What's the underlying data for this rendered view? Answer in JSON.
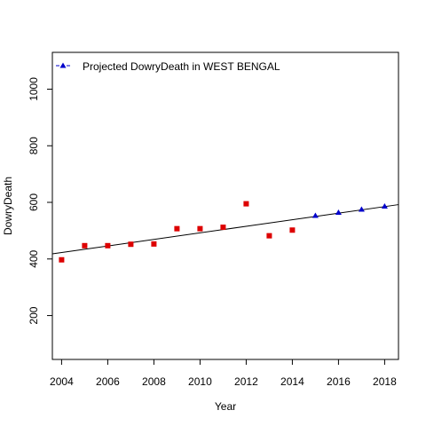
{
  "chart_data": {
    "type": "scatter",
    "xlabel": "Year",
    "ylabel": "DowryDeath",
    "xlim": [
      2003.6,
      2018.6
    ],
    "ylim": [
      45,
      1130
    ],
    "xticks": [
      2004,
      2006,
      2008,
      2010,
      2012,
      2014,
      2016,
      2018
    ],
    "yticks": [
      200,
      400,
      600,
      800,
      1000
    ],
    "legend": {
      "position": "top-left",
      "entries": [
        "Projected  DowryDeath  in  WEST BENGAL"
      ]
    },
    "series": [
      {
        "marker": "square",
        "color": "#dd0000",
        "x": [
          2004,
          2005,
          2006,
          2007,
          2008,
          2009,
          2010,
          2011,
          2012,
          2013,
          2014
        ],
        "y": [
          397,
          447,
          447,
          452,
          453,
          507,
          507,
          512,
          595,
          482,
          502
        ]
      },
      {
        "name": "Projected  DowryDeath  in  WEST BENGAL",
        "marker": "triangle",
        "color": "#0000cc",
        "x": [
          2015,
          2016,
          2017,
          2018
        ],
        "y": [
          553,
          564,
          575,
          586
        ]
      }
    ],
    "trendline": {
      "color": "#000000",
      "x": [
        2003.6,
        2018.6
      ],
      "y": [
        418,
        592
      ]
    }
  }
}
